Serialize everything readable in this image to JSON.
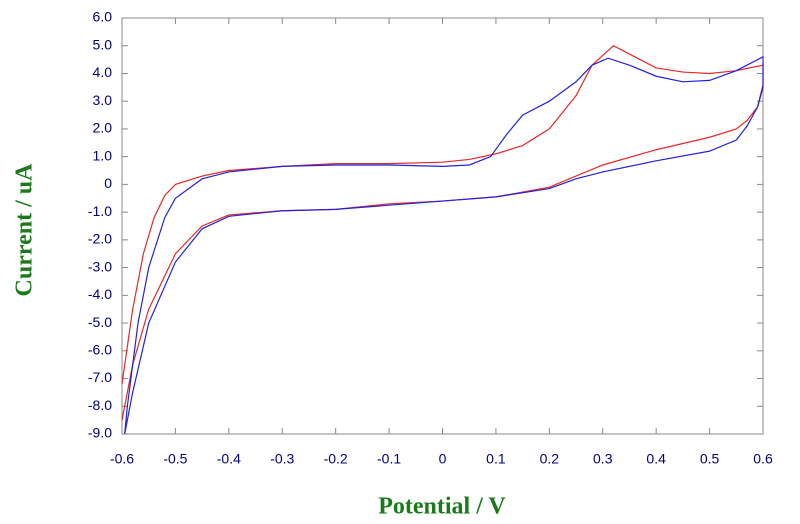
{
  "chart_data": {
    "type": "line",
    "x_label": "Potential / V",
    "y_label": "Current / uA",
    "xlim": [
      -0.6,
      0.6
    ],
    "ylim": [
      -9,
      6
    ],
    "xticks": [
      -0.6,
      -0.5,
      -0.4,
      -0.3,
      -0.2,
      -0.1,
      0,
      0.1,
      0.2,
      0.3,
      0.4,
      0.5,
      0.6
    ],
    "yticks": [
      {
        "value": 6,
        "label": "6.0"
      },
      {
        "value": 5,
        "label": "5.0"
      },
      {
        "value": 4,
        "label": "4.0"
      },
      {
        "value": 3,
        "label": "3.0"
      },
      {
        "value": 2,
        "label": "2.0"
      },
      {
        "value": 1,
        "label": "1.0"
      },
      0,
      {
        "value": -1,
        "label": "-1.0"
      },
      {
        "value": -2,
        "label": "-2.0"
      },
      {
        "value": -3,
        "label": "-3.0"
      },
      {
        "value": -4,
        "label": "-4.0"
      },
      {
        "value": -5,
        "label": "-5.0"
      },
      {
        "value": -6,
        "label": "-6.0"
      },
      {
        "value": -7,
        "label": "-7.0"
      },
      {
        "value": -8,
        "label": "-8.0"
      },
      {
        "value": -9,
        "label": "-9.0"
      }
    ],
    "series": [
      {
        "color": "#e82828",
        "x": [
          -0.6,
          -0.58,
          -0.56,
          -0.54,
          -0.52,
          -0.5,
          -0.45,
          -0.4,
          -0.3,
          -0.2,
          -0.1,
          0,
          0.05,
          0.1,
          0.15,
          0.2,
          0.25,
          0.28,
          0.32,
          0.36,
          0.4,
          0.45,
          0.5,
          0.55,
          0.6,
          0.6,
          0.59,
          0.57,
          0.55,
          0.5,
          0.4,
          0.3,
          0.25,
          0.2,
          0.1,
          0,
          -0.1,
          -0.2,
          -0.3,
          -0.4,
          -0.45,
          -0.5,
          -0.55,
          -0.58,
          -0.6
        ],
        "y": [
          -7.2,
          -4.5,
          -2.5,
          -1.2,
          -0.4,
          0,
          0.3,
          0.5,
          0.65,
          0.75,
          0.75,
          0.8,
          0.9,
          1.1,
          1.4,
          2.0,
          3.2,
          4.3,
          5.0,
          4.6,
          4.2,
          4.05,
          4.0,
          4.1,
          4.3,
          3.6,
          2.8,
          2.3,
          2.0,
          1.7,
          1.25,
          0.7,
          0.3,
          -0.1,
          -0.45,
          -0.6,
          -0.7,
          -0.9,
          -0.95,
          -1.1,
          -1.5,
          -2.5,
          -4.5,
          -6.5,
          -8.5
        ]
      },
      {
        "color": "#2222dd",
        "x": [
          -0.595,
          -0.59,
          -0.57,
          -0.55,
          -0.52,
          -0.5,
          -0.45,
          -0.4,
          -0.3,
          -0.2,
          -0.1,
          0,
          0.05,
          0.09,
          0.12,
          0.15,
          0.2,
          0.25,
          0.28,
          0.31,
          0.35,
          0.4,
          0.45,
          0.5,
          0.55,
          0.6,
          0.6,
          0.59,
          0.57,
          0.55,
          0.5,
          0.4,
          0.3,
          0.25,
          0.2,
          0.1,
          0,
          -0.1,
          -0.2,
          -0.3,
          -0.4,
          -0.45,
          -0.5,
          -0.55,
          -0.58,
          -0.595
        ],
        "y": [
          -9.0,
          -8.0,
          -5.0,
          -3.0,
          -1.2,
          -0.5,
          0.2,
          0.45,
          0.65,
          0.7,
          0.7,
          0.65,
          0.7,
          1.0,
          1.8,
          2.5,
          3.0,
          3.7,
          4.3,
          4.55,
          4.3,
          3.9,
          3.7,
          3.75,
          4.1,
          4.6,
          3.5,
          2.8,
          2.1,
          1.6,
          1.2,
          0.85,
          0.45,
          0.2,
          -0.15,
          -0.45,
          -0.6,
          -0.75,
          -0.9,
          -0.95,
          -1.15,
          -1.6,
          -2.8,
          -5.0,
          -7.5,
          -9.0
        ]
      }
    ]
  }
}
